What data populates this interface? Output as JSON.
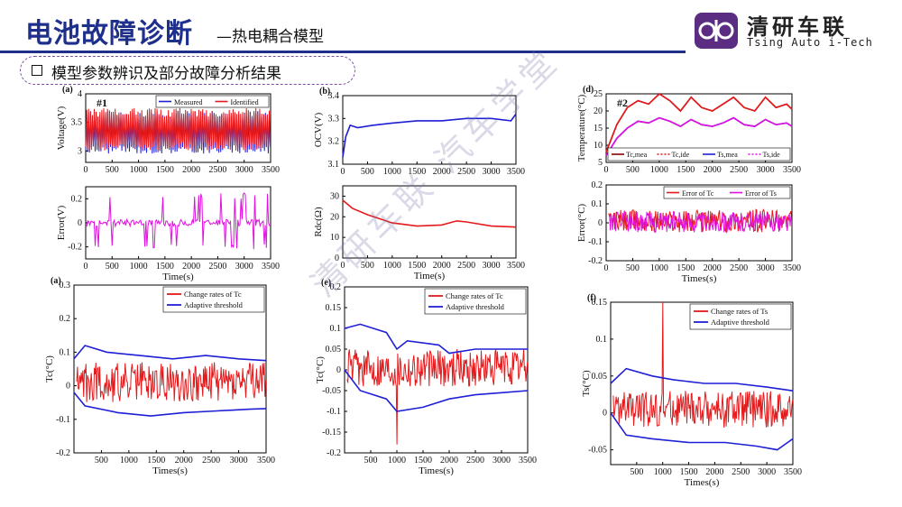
{
  "header": {
    "title": "电池故障诊断",
    "subtitle": "—热电耦合模型",
    "logo_cn": "清研车联",
    "logo_en": "Tsing Auto i-Tech",
    "accent_color": "#1f2f8c",
    "logo_color": "#5a2d82"
  },
  "section": {
    "label": "模型参数辨识及部分故障分析结果"
  },
  "watermark": "清研车联 汽车学堂",
  "chart_data": [
    {
      "id": "a1",
      "panel_label": "(a)",
      "tag": "#1",
      "type": "line",
      "ylabel": "Voltage(V)",
      "xlabel": "",
      "xlim": [
        0,
        3500
      ],
      "ylim": [
        2.8,
        4
      ],
      "xticks": [
        0,
        500,
        1000,
        1500,
        2000,
        2500,
        3000,
        3500
      ],
      "yticks": [
        3,
        3.5,
        4
      ],
      "legend": "top-right",
      "series": [
        {
          "name": "Measured",
          "color": "#1f1fd6",
          "style": "rapid",
          "lo": 2.95,
          "hi": 3.7
        },
        {
          "name": "Identified",
          "color": "#e41a1c",
          "style": "rapid",
          "lo": 3.0,
          "hi": 3.75
        }
      ]
    },
    {
      "id": "a2",
      "type": "line",
      "ylabel": "Error(V)",
      "xlabel": "Time(s)",
      "xlim": [
        0,
        3500
      ],
      "ylim": [
        -0.3,
        0.3
      ],
      "xticks": [
        0,
        500,
        1000,
        1500,
        2000,
        2500,
        3000,
        3500
      ],
      "yticks": [
        -0.2,
        0,
        0.2
      ],
      "series": [
        {
          "name": "",
          "color": "#e010e0",
          "style": "spiky",
          "lo": -0.22,
          "hi": 0.25
        }
      ]
    },
    {
      "id": "b1",
      "panel_label": "(b)",
      "type": "line",
      "ylabel": "OCV(V)",
      "xlabel": "",
      "xlim": [
        0,
        3500
      ],
      "ylim": [
        3.1,
        3.4
      ],
      "xticks": [
        0,
        500,
        1000,
        1500,
        2000,
        2500,
        3000,
        3500
      ],
      "yticks": [
        3.1,
        3.2,
        3.3,
        3.4
      ],
      "series": [
        {
          "name": "",
          "color": "#1f1fd6",
          "points": [
            [
              0,
              3.13
            ],
            [
              60,
              3.22
            ],
            [
              150,
              3.27
            ],
            [
              300,
              3.26
            ],
            [
              600,
              3.27
            ],
            [
              1000,
              3.28
            ],
            [
              1500,
              3.29
            ],
            [
              2000,
              3.29
            ],
            [
              2500,
              3.3
            ],
            [
              3000,
              3.3
            ],
            [
              3400,
              3.29
            ],
            [
              3500,
              3.32
            ]
          ]
        }
      ]
    },
    {
      "id": "b2",
      "type": "line",
      "ylabel": "Rdc(Ω)",
      "xlabel": "Time(s)",
      "xlim": [
        0,
        3500
      ],
      "ylim": [
        0,
        35
      ],
      "xticks": [
        0,
        500,
        1000,
        1500,
        2000,
        2500,
        3000,
        3500
      ],
      "yticks": [
        0,
        10,
        20,
        30
      ],
      "series": [
        {
          "name": "",
          "color": "#e41a1c",
          "points": [
            [
              0,
              28
            ],
            [
              200,
              24
            ],
            [
              500,
              21
            ],
            [
              1000,
              17
            ],
            [
              1500,
              15.5
            ],
            [
              2000,
              16
            ],
            [
              2300,
              18
            ],
            [
              2500,
              17.5
            ],
            [
              3000,
              15.5
            ],
            [
              3500,
              15
            ]
          ]
        }
      ]
    },
    {
      "id": "d1",
      "panel_label": "(d)",
      "tag": "#2",
      "type": "line",
      "ylabel": "Temperature(°C)",
      "xlabel": "",
      "xlim": [
        0,
        3500
      ],
      "ylim": [
        5,
        25
      ],
      "xticks": [
        0,
        500,
        1000,
        1500,
        2000,
        2500,
        3000,
        3500
      ],
      "yticks": [
        5,
        10,
        15,
        20,
        25
      ],
      "legend": "bottom",
      "series": [
        {
          "name": "Tc,mea",
          "color": "#8b0000",
          "points": [
            [
              0,
              8
            ],
            [
              200,
              16
            ],
            [
              400,
              21
            ],
            [
              600,
              23
            ],
            [
              800,
              22
            ],
            [
              1000,
              25
            ],
            [
              1200,
              23
            ],
            [
              1400,
              20
            ],
            [
              1600,
              24
            ],
            [
              1800,
              21
            ],
            [
              2000,
              20
            ],
            [
              2200,
              22
            ],
            [
              2400,
              24
            ],
            [
              2600,
              21
            ],
            [
              2800,
              20
            ],
            [
              3000,
              24
            ],
            [
              3200,
              21
            ],
            [
              3400,
              22
            ],
            [
              3500,
              20.5
            ]
          ]
        },
        {
          "name": "Tc,ide",
          "color": "#e41a1c",
          "points": [
            [
              0,
              8
            ],
            [
              200,
              16
            ],
            [
              400,
              21
            ],
            [
              600,
              23
            ],
            [
              800,
              22
            ],
            [
              1000,
              25
            ],
            [
              1200,
              23
            ],
            [
              1400,
              20
            ],
            [
              1600,
              24
            ],
            [
              1800,
              21
            ],
            [
              2000,
              20
            ],
            [
              2200,
              22
            ],
            [
              2400,
              24
            ],
            [
              2600,
              21
            ],
            [
              2800,
              20
            ],
            [
              3000,
              24
            ],
            [
              3200,
              21
            ],
            [
              3400,
              22
            ],
            [
              3500,
              20.5
            ]
          ]
        },
        {
          "name": "Ts,mea",
          "color": "#1f1fd6",
          "points": [
            [
              0,
              7
            ],
            [
              200,
              12
            ],
            [
              400,
              15
            ],
            [
              600,
              17
            ],
            [
              800,
              16.5
            ],
            [
              1000,
              18
            ],
            [
              1200,
              17
            ],
            [
              1400,
              15.5
            ],
            [
              1600,
              17.5
            ],
            [
              1800,
              16
            ],
            [
              2000,
              15.5
            ],
            [
              2200,
              16.5
            ],
            [
              2400,
              18
            ],
            [
              2600,
              16
            ],
            [
              2800,
              15.5
            ],
            [
              3000,
              17.5
            ],
            [
              3200,
              16
            ],
            [
              3400,
              16.5
            ],
            [
              3500,
              15.5
            ]
          ]
        },
        {
          "name": "Ts,ide",
          "color": "#e010e0",
          "points": [
            [
              0,
              7
            ],
            [
              200,
              12
            ],
            [
              400,
              15
            ],
            [
              600,
              17
            ],
            [
              800,
              16.5
            ],
            [
              1000,
              18
            ],
            [
              1200,
              17
            ],
            [
              1400,
              15.5
            ],
            [
              1600,
              17.5
            ],
            [
              1800,
              16
            ],
            [
              2000,
              15.5
            ],
            [
              2200,
              16.5
            ],
            [
              2400,
              18
            ],
            [
              2600,
              16
            ],
            [
              2800,
              15.5
            ],
            [
              3000,
              17.5
            ],
            [
              3200,
              16
            ],
            [
              3400,
              16.5
            ],
            [
              3500,
              15.5
            ]
          ]
        }
      ]
    },
    {
      "id": "d2",
      "type": "line",
      "ylabel": "Error(°C)",
      "xlabel": "Times(s)",
      "xlim": [
        0,
        3500
      ],
      "ylim": [
        -0.2,
        0.2
      ],
      "xticks": [
        0,
        500,
        1000,
        1500,
        2000,
        2500,
        3000,
        3500
      ],
      "yticks": [
        -0.2,
        -0.1,
        0,
        0.1,
        0.2
      ],
      "legend": "top-right",
      "series": [
        {
          "name": "Error of Tc",
          "color": "#e41a1c",
          "style": "noise",
          "lo": -0.05,
          "hi": 0.07
        },
        {
          "name": "Error of Ts",
          "color": "#e010e0",
          "style": "noise",
          "lo": -0.05,
          "hi": 0.06
        }
      ]
    },
    {
      "id": "a3",
      "panel_label": "(a)",
      "type": "line",
      "ylabel": "Tc(°C)",
      "xlabel": "Times(s)",
      "xlim": [
        0,
        3500
      ],
      "ylim": [
        -0.2,
        0.3
      ],
      "xticks": [
        500,
        1000,
        1500,
        2000,
        2500,
        3000,
        3500
      ],
      "yticks": [
        -0.2,
        -0.1,
        0,
        0.1,
        0.2,
        0.3
      ],
      "legend": "top-right",
      "series": [
        {
          "name": "Change rates of Tc",
          "color": "#e41a1c",
          "style": "noise",
          "lo": -0.05,
          "hi": 0.07
        },
        {
          "name": "Adaptive threshold",
          "color": "#1f1fd6",
          "points": [
            [
              0,
              0.08
            ],
            [
              200,
              0.12
            ],
            [
              600,
              0.1
            ],
            [
              1200,
              0.09
            ],
            [
              1800,
              0.08
            ],
            [
              2400,
              0.09
            ],
            [
              3000,
              0.08
            ],
            [
              3500,
              0.075
            ]
          ]
        },
        {
          "name": "",
          "color": "#1f1fd6",
          "points": [
            [
              0,
              -0.02
            ],
            [
              200,
              -0.06
            ],
            [
              800,
              -0.08
            ],
            [
              1400,
              -0.09
            ],
            [
              2000,
              -0.08
            ],
            [
              2600,
              -0.075
            ],
            [
              3200,
              -0.07
            ],
            [
              3500,
              -0.068
            ]
          ]
        }
      ]
    },
    {
      "id": "e",
      "panel_label": "(e)",
      "type": "line",
      "ylabel": "Tc(°C)",
      "xlabel": "Times(s)",
      "xlim": [
        0,
        3500
      ],
      "ylim": [
        -0.2,
        0.2
      ],
      "xticks": [
        500,
        1000,
        1500,
        2000,
        2500,
        3000,
        3500
      ],
      "yticks": [
        -0.2,
        -0.15,
        -0.1,
        -0.05,
        0,
        0.05,
        0.1,
        0.15,
        0.2
      ],
      "legend": "top-right",
      "series": [
        {
          "name": "Change rates of Tc",
          "color": "#e41a1c",
          "style": "noise",
          "lo": -0.04,
          "hi": 0.05,
          "spike": [
            1000,
            -0.18
          ]
        },
        {
          "name": "Adaptive threshold",
          "color": "#1f1fd6",
          "points": [
            [
              0,
              0.1
            ],
            [
              300,
              0.11
            ],
            [
              800,
              0.09
            ],
            [
              1000,
              0.05
            ],
            [
              1200,
              0.07
            ],
            [
              1800,
              0.06
            ],
            [
              2000,
              0.04
            ],
            [
              2500,
              0.05
            ],
            [
              3000,
              0.05
            ],
            [
              3500,
              0.05
            ]
          ]
        },
        {
          "name": "",
          "color": "#1f1fd6",
          "points": [
            [
              0,
              0.0
            ],
            [
              300,
              -0.05
            ],
            [
              800,
              -0.07
            ],
            [
              1000,
              -0.1
            ],
            [
              1500,
              -0.09
            ],
            [
              2000,
              -0.07
            ],
            [
              2500,
              -0.06
            ],
            [
              3000,
              -0.055
            ],
            [
              3500,
              -0.05
            ]
          ]
        }
      ]
    },
    {
      "id": "f",
      "panel_label": "(f)",
      "type": "line",
      "ylabel": "Ts(°C)",
      "xlabel": "Times(s)",
      "xlim": [
        0,
        3500
      ],
      "ylim": [
        -0.07,
        0.15
      ],
      "xticks": [
        500,
        1000,
        1500,
        2000,
        2500,
        3000,
        3500
      ],
      "yticks": [
        -0.05,
        0,
        0.05,
        0.1,
        0.15
      ],
      "legend": "top-right",
      "series": [
        {
          "name": "Change rates of Ts",
          "color": "#e41a1c",
          "style": "noise",
          "lo": -0.02,
          "hi": 0.03,
          "spike": [
            1000,
            0.15
          ]
        },
        {
          "name": "Adaptive threshold",
          "color": "#1f1fd6",
          "points": [
            [
              0,
              0.04
            ],
            [
              300,
              0.06
            ],
            [
              800,
              0.05
            ],
            [
              1200,
              0.045
            ],
            [
              1800,
              0.04
            ],
            [
              2400,
              0.04
            ],
            [
              3000,
              0.035
            ],
            [
              3500,
              0.03
            ]
          ]
        },
        {
          "name": "",
          "color": "#1f1fd6",
          "points": [
            [
              0,
              0.0
            ],
            [
              300,
              -0.03
            ],
            [
              800,
              -0.035
            ],
            [
              1500,
              -0.04
            ],
            [
              2200,
              -0.04
            ],
            [
              2800,
              -0.045
            ],
            [
              3200,
              -0.05
            ],
            [
              3500,
              -0.035
            ]
          ]
        }
      ]
    }
  ]
}
